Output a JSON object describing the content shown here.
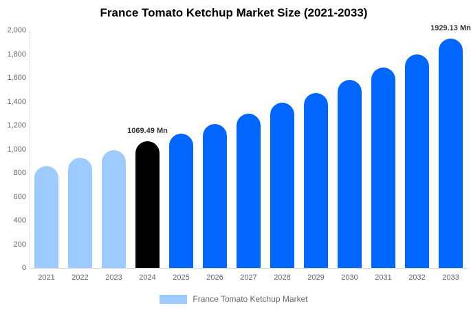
{
  "title": "France Tomato Ketchup Market Size (2021-2033)",
  "legend": {
    "label": "France Tomato Ketchup Market",
    "swatch_color": "#9ECBFF"
  },
  "chart_data": {
    "type": "bar",
    "title": "France Tomato Ketchup Market Size (2021-2033)",
    "xlabel": "",
    "ylabel": "",
    "categories": [
      "2021",
      "2022",
      "2023",
      "2024",
      "2025",
      "2026",
      "2027",
      "2028",
      "2029",
      "2030",
      "2031",
      "2032",
      "2033"
    ],
    "values": [
      860,
      925,
      990,
      1069.49,
      1128,
      1212,
      1298,
      1390,
      1475,
      1580,
      1685,
      1800,
      1929.13
    ],
    "unit": "Mn",
    "series_name": "France Tomato Ketchup Market",
    "bar_colors": [
      "#9ECBFF",
      "#9ECBFF",
      "#9ECBFF",
      "#000000",
      "#0066FF",
      "#0066FF",
      "#0066FF",
      "#0066FF",
      "#0066FF",
      "#0066FF",
      "#0066FF",
      "#0066FF",
      "#0066FF"
    ],
    "ylim": [
      0,
      2000
    ],
    "ytick_values": [
      0,
      200,
      400,
      600,
      800,
      1000,
      1200,
      1400,
      1600,
      1800,
      2000
    ],
    "ytick_labels": [
      "0",
      "200",
      "400",
      "600",
      "800",
      "1,000",
      "1,200",
      "1,400",
      "1,600",
      "1,800",
      "2,000"
    ],
    "grid": false,
    "legend_position": "bottom",
    "annotations": [
      {
        "category": "2024",
        "text": "1069.49 Mn"
      },
      {
        "category": "2033",
        "text": "1929.13 Mn"
      }
    ]
  }
}
